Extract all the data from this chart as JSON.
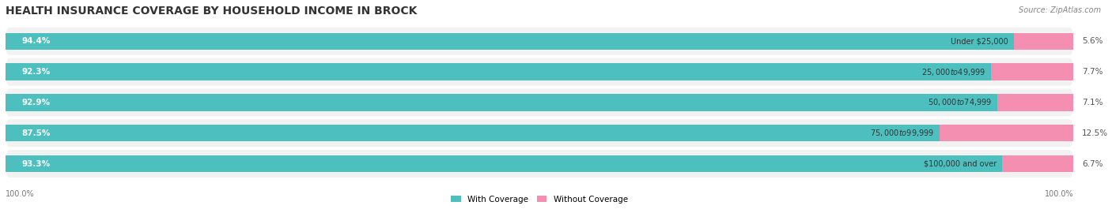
{
  "title": "HEALTH INSURANCE COVERAGE BY HOUSEHOLD INCOME IN BROCK",
  "source": "Source: ZipAtlas.com",
  "categories": [
    "Under $25,000",
    "$25,000 to $49,999",
    "$50,000 to $74,999",
    "$75,000 to $99,999",
    "$100,000 and over"
  ],
  "with_coverage": [
    94.4,
    92.3,
    92.9,
    87.5,
    93.3
  ],
  "without_coverage": [
    5.6,
    7.7,
    7.1,
    12.5,
    6.7
  ],
  "color_with": "#4DBFBF",
  "color_without": "#F48FB1",
  "row_bg_color": "#f2f2f2",
  "bar_height": 0.55,
  "legend_with": "With Coverage",
  "legend_without": "Without Coverage",
  "title_fontsize": 10,
  "label_fontsize": 7.5,
  "cat_fontsize": 7.0,
  "tick_fontsize": 7,
  "source_fontsize": 7
}
